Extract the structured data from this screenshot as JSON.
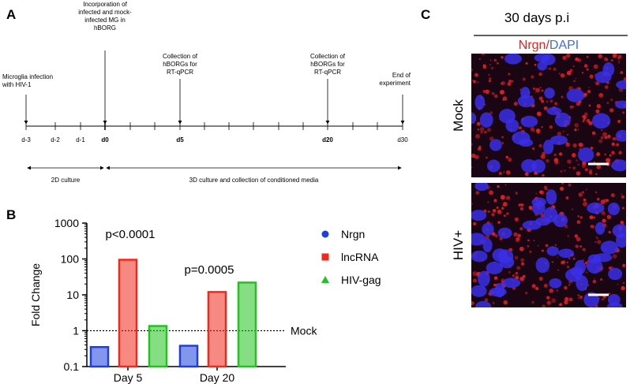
{
  "panels": {
    "a": "A",
    "b": "B",
    "c": "C"
  },
  "timeline": {
    "events": [
      {
        "lines": [
          "Microglia infection",
          "with HIV-1"
        ]
      },
      {
        "lines": [
          "Incorporation of",
          "infected and mock-",
          "infected MG in",
          "hBORG"
        ]
      },
      {
        "lines": [
          "Collection of",
          "hBORGs for",
          "RT-qPCR"
        ]
      },
      {
        "lines": [
          "Collection of",
          "hBORGs for",
          "RT-qPCR"
        ]
      },
      {
        "lines": [
          "End of",
          "experiment"
        ]
      }
    ],
    "days": [
      "d-3",
      "d-2",
      "d-1",
      "d0",
      "d5",
      "d20",
      "d30"
    ],
    "phases": [
      "2D culture",
      "3D culture and collection of conditioned media"
    ]
  },
  "chart_data": {
    "type": "bar",
    "ylabel": "Fold Change",
    "categories": [
      "Day 5",
      "Day 20"
    ],
    "series": [
      {
        "name": "Nrgn",
        "color": "#1d3fe0",
        "values": [
          0.35,
          0.38
        ]
      },
      {
        "name": "lncRNA",
        "color": "#ee2a1b",
        "values": [
          95,
          12
        ]
      },
      {
        "name": "HIV-gag",
        "color": "#22c21f",
        "values": [
          1.35,
          22
        ]
      }
    ],
    "ylim": [
      0.1,
      1000
    ],
    "yticks": [
      1000,
      100,
      10,
      1,
      0.1
    ],
    "log_scale": true,
    "reference_line": {
      "value": 1,
      "label": "Mock"
    },
    "annotations": [
      "p<0.0001",
      "p=0.0005"
    ]
  },
  "microscopy": {
    "title": "30 days p.i",
    "stain_red": "Nrgn/",
    "stain_blue": "DAPI",
    "rows": [
      "Mock",
      "HIV+"
    ]
  }
}
